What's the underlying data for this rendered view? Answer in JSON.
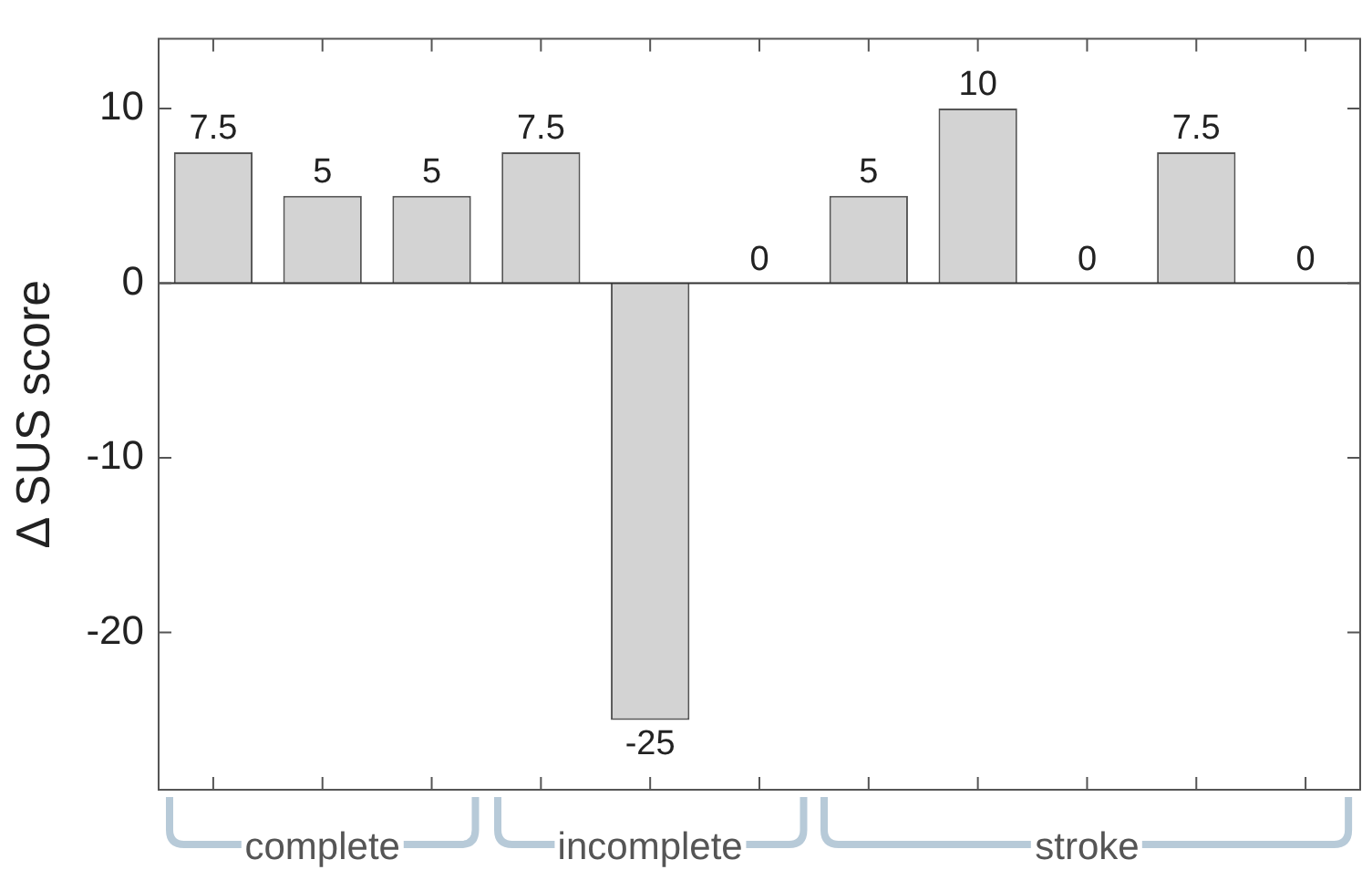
{
  "chart_data": {
    "type": "bar",
    "ylabel": "Δ SUS score",
    "categories": [
      null,
      null,
      null,
      null,
      null,
      null,
      null,
      null,
      null,
      null,
      null
    ],
    "values": [
      7.5,
      5,
      5,
      7.5,
      -25,
      0,
      5,
      10,
      0,
      7.5,
      0
    ],
    "color": "#d3d3d3",
    "ylim": [
      -29,
      14
    ],
    "yticks": [
      -20,
      -10,
      0,
      10
    ],
    "ref_lines": [
      {
        "axis": "y",
        "value": 0
      }
    ],
    "data_labels": true,
    "grid": false,
    "legend": false,
    "annotations": [
      "complete",
      "incomplete",
      "stroke"
    ]
  }
}
